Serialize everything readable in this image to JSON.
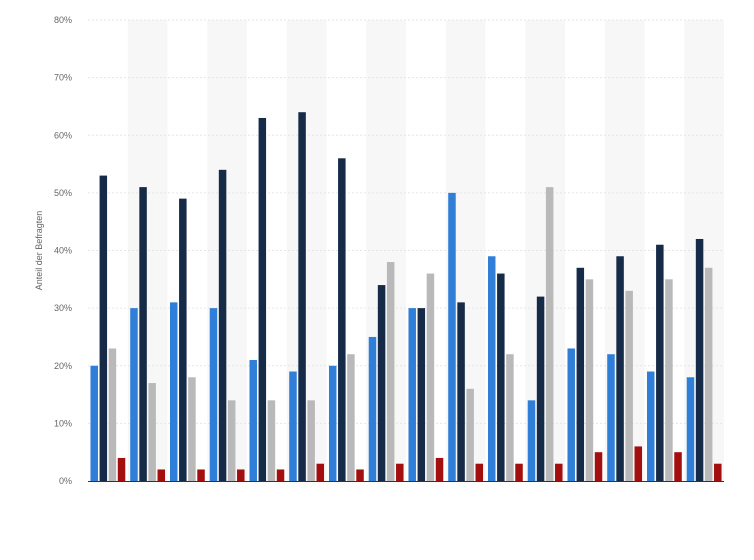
{
  "chart_data": {
    "type": "bar",
    "ylabel": "Anteil der Befragten",
    "ylim": [
      0,
      80
    ],
    "yticks": [
      "0%",
      "10%",
      "20%",
      "30%",
      "40%",
      "50%",
      "60%",
      "70%",
      "80%"
    ],
    "grid": true,
    "categories": [
      "",
      "",
      "",
      "",
      "",
      "",
      "",
      "",
      "",
      "",
      "",
      "",
      "",
      "",
      "",
      ""
    ],
    "series": [
      {
        "color": "#2f7ed8",
        "values": [
          20,
          30,
          31,
          30,
          21,
          19,
          20,
          25,
          30,
          50,
          39,
          14,
          23,
          22,
          19,
          18
        ]
      },
      {
        "color": "#162b48",
        "values": [
          53,
          51,
          49,
          54,
          63,
          64,
          56,
          34,
          30,
          31,
          36,
          32,
          37,
          39,
          41,
          42
        ]
      },
      {
        "color": "#b9b9b9",
        "values": [
          23,
          17,
          18,
          14,
          14,
          14,
          22,
          38,
          36,
          16,
          22,
          51,
          35,
          33,
          35,
          37
        ]
      },
      {
        "color": "#a30f0f",
        "values": [
          4,
          2,
          2,
          2,
          2,
          3,
          2,
          3,
          4,
          3,
          3,
          3,
          5,
          6,
          5,
          3
        ]
      }
    ]
  }
}
